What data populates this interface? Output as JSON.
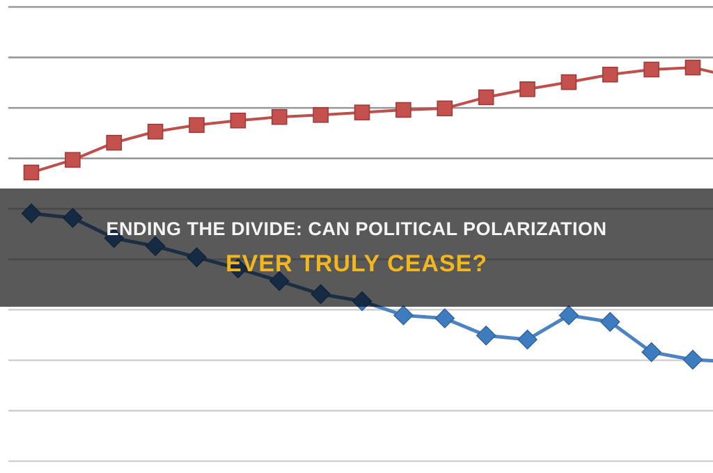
{
  "banner": {
    "title_line1": "ENDING THE DIVIDE: CAN POLITICAL POLARIZATION",
    "title_line2": "EVER TRULY CEASE?",
    "overlay_color": "rgba(0,0,0,0.65)",
    "title_line1_color": "#f4f4f4",
    "title_line2_color": "#f2b71e"
  },
  "chart_data": {
    "type": "line",
    "title": "",
    "xlabel": "",
    "ylabel": "",
    "axis_labels_visible": false,
    "legend": "none",
    "grid": "horizontal",
    "ylim": [
      0,
      95
    ],
    "gridlines": {
      "dark_values": [
        90,
        80,
        70,
        60
      ],
      "light_values": [
        50,
        40,
        30,
        20,
        10,
        0
      ],
      "dark_color": "#979797",
      "light_color": "#d2d2d2"
    },
    "series": [
      {
        "name": "rising series (red squares)",
        "marker": "square",
        "line_color": "#bf4f4b",
        "marker_fill": "#c4514d",
        "marker_stroke": "#9c3c38",
        "values": [
          57.2,
          59.7,
          63.1,
          65.3,
          66.6,
          67.5,
          68.2,
          68.6,
          69.1,
          69.6,
          69.9,
          72.1,
          73.7,
          75.1,
          76.6,
          77.6,
          78.0,
          76.1
        ]
      },
      {
        "name": "falling series (blue diamonds)",
        "marker": "diamond",
        "line_color": "#4d83c3",
        "marker_fill": "#3e7cc0",
        "marker_stroke": "#30619a",
        "values": [
          49.1,
          48.2,
          44.2,
          42.6,
          40.4,
          38.2,
          35.7,
          33.1,
          31.7,
          28.9,
          28.3,
          24.9,
          24.1,
          28.9,
          27.6,
          21.6,
          20.1,
          19.7
        ]
      }
    ]
  }
}
